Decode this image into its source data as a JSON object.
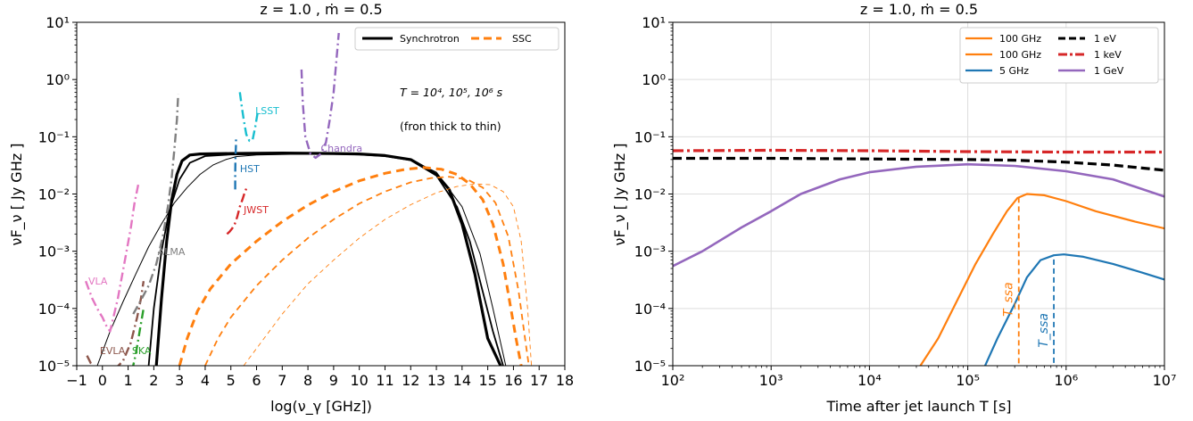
{
  "chart_data": [
    {
      "type": "line",
      "title": "z = 1.0 , ṁ = 0.5",
      "xlabel": "log(ν_γ [GHz])",
      "ylabel": "νF_ν [ Jy GHz ]",
      "xlim": [
        -1,
        18
      ],
      "ylim": [
        1e-05,
        10
      ],
      "yscale": "log",
      "xticks": [
        -1,
        0,
        1,
        2,
        3,
        4,
        5,
        6,
        7,
        8,
        9,
        10,
        11,
        12,
        13,
        14,
        15,
        16,
        17,
        18
      ],
      "yticks": [
        1e-05,
        0.0001,
        0.001,
        0.01,
        0.1,
        1,
        10
      ],
      "grid": false,
      "legend_position": "top-right",
      "legend": [
        {
          "label": "Synchrotron",
          "color": "#000000",
          "style": "solid"
        },
        {
          "label": "SSC",
          "color": "#ff7f0e",
          "style": "dashed"
        }
      ],
      "annotations": {
        "times": "T = 10⁴, 10⁵, 10⁶ s",
        "order": "(fron thick to thin)"
      },
      "series": [
        {
          "kind": "sync",
          "color": "#000000",
          "width": 3.2,
          "dash": "",
          "x": [
            2.1,
            2.3,
            2.5,
            2.7,
            2.9,
            3.1,
            3.4,
            3.8,
            5,
            7,
            9,
            10,
            11,
            12,
            13,
            13.5,
            14,
            14.5,
            15,
            15.5
          ],
          "y": [
            1e-05,
            0.00015,
            0.0015,
            0.008,
            0.022,
            0.038,
            0.048,
            0.05,
            0.051,
            0.052,
            0.051,
            0.05,
            0.047,
            0.04,
            0.022,
            0.012,
            0.003,
            0.0004,
            3e-05,
            1e-05
          ]
        },
        {
          "kind": "sync",
          "color": "#000000",
          "width": 1.8,
          "dash": "",
          "x": [
            1.8,
            2.0,
            2.3,
            2.6,
            3.0,
            3.4,
            4.0,
            5,
            7,
            9,
            10,
            11,
            12,
            13,
            13.8,
            14.3,
            14.8,
            15.2,
            15.6
          ],
          "y": [
            1e-05,
            0.0001,
            0.001,
            0.005,
            0.018,
            0.035,
            0.046,
            0.049,
            0.05,
            0.05,
            0.049,
            0.046,
            0.039,
            0.021,
            0.006,
            0.0015,
            0.0002,
            4e-05,
            1e-05
          ]
        },
        {
          "kind": "sync",
          "color": "#000000",
          "width": 1.0,
          "dash": "",
          "x": [
            -0.2,
            0.3,
            0.8,
            1.3,
            1.8,
            2.3,
            2.8,
            3.3,
            3.8,
            4.3,
            4.8,
            5.2,
            6,
            8,
            10,
            11,
            12,
            13,
            14,
            14.7,
            15.2,
            15.7
          ],
          "y": [
            1e-05,
            4e-05,
            0.00013,
            0.0004,
            0.0012,
            0.003,
            0.007,
            0.013,
            0.022,
            0.032,
            0.04,
            0.045,
            0.048,
            0.05,
            0.049,
            0.046,
            0.04,
            0.024,
            0.006,
            0.0009,
            0.0001,
            1e-05
          ]
        },
        {
          "kind": "ssc",
          "color": "#ff7f0e",
          "width": 3.0,
          "dash": "9,6",
          "x": [
            3.0,
            3.3,
            3.7,
            4.2,
            5,
            6,
            7,
            8,
            9,
            10,
            11,
            11.8,
            12.5,
            13.2,
            13.8,
            14.3,
            14.8,
            15.2,
            15.6,
            15.9,
            16.1,
            16.3
          ],
          "y": [
            1e-05,
            3e-05,
            9e-05,
            0.00022,
            0.0006,
            0.0015,
            0.0033,
            0.0064,
            0.011,
            0.017,
            0.023,
            0.027,
            0.029,
            0.027,
            0.022,
            0.015,
            0.008,
            0.003,
            0.0006,
            0.0001,
            3e-05,
            1e-05
          ]
        },
        {
          "kind": "ssc",
          "color": "#ff7f0e",
          "width": 1.8,
          "dash": "7,5",
          "x": [
            4.0,
            4.5,
            5,
            6,
            7,
            8,
            9,
            10,
            11,
            12,
            12.8,
            13.5,
            14.2,
            14.8,
            15.3,
            15.8,
            16.2,
            16.45,
            16.6
          ],
          "y": [
            1e-05,
            3e-05,
            7e-05,
            0.00025,
            0.0007,
            0.0017,
            0.0036,
            0.0068,
            0.011,
            0.016,
            0.019,
            0.02,
            0.018,
            0.013,
            0.007,
            0.0018,
            0.0002,
            3e-05,
            1e-05
          ]
        },
        {
          "kind": "ssc",
          "color": "#ff7f0e",
          "width": 0.9,
          "dash": "5,4",
          "x": [
            5.5,
            6,
            7,
            8,
            9,
            10,
            11,
            12,
            13,
            13.8,
            14.5,
            15.1,
            15.6,
            16.0,
            16.3,
            16.55,
            16.7
          ],
          "y": [
            1e-05,
            2e-05,
            8e-05,
            0.00027,
            0.0007,
            0.0017,
            0.0036,
            0.0065,
            0.0105,
            0.0135,
            0.015,
            0.0145,
            0.011,
            0.006,
            0.0015,
            0.0001,
            1e-05
          ]
        },
        {
          "kind": "inst",
          "name": "VLA",
          "color": "#e377c2",
          "dash": "10,4,2,4",
          "x": [
            -0.65,
            -0.4,
            -0.15,
            0.0,
            0.15,
            0.3,
            0.6,
            0.9,
            1.1,
            1.25,
            1.4
          ],
          "y": [
            0.0003,
            0.00015,
            9e-05,
            7e-05,
            5e-05,
            4e-05,
            0.00015,
            0.0008,
            0.0025,
            0.007,
            0.015
          ]
        },
        {
          "kind": "inst",
          "name": "EVLA",
          "color": "#8c564b",
          "dash": "10,4,2,4",
          "x": [
            -0.6,
            -0.45,
            -0.25,
            0.0,
            0.4,
            0.8,
            1.1,
            1.35,
            1.5,
            1.6
          ],
          "y": [
            1.5e-05,
            1.1e-05,
            9e-06,
            8e-06,
            8e-06,
            1.2e-05,
            2.5e-05,
            7e-05,
            0.00015,
            0.0003
          ]
        },
        {
          "kind": "inst",
          "name": "SKA",
          "color": "#2ca02c",
          "dash": "10,4,2,4",
          "x": [
            1.15,
            1.3,
            1.45,
            1.6
          ],
          "y": [
            8e-06,
            1.6e-05,
            4e-05,
            0.0001
          ]
        },
        {
          "kind": "inst",
          "name": "ALMA",
          "color": "#7f7f7f",
          "dash": "10,4,2,4",
          "x": [
            1.2,
            1.5,
            1.8,
            2.1,
            2.35,
            2.55,
            2.7,
            2.8,
            2.9,
            2.95
          ],
          "y": [
            8e-05,
            0.00014,
            0.00025,
            0.0006,
            0.0018,
            0.006,
            0.02,
            0.06,
            0.2,
            0.55
          ]
        },
        {
          "kind": "inst",
          "name": "JWST",
          "color": "#d62728",
          "dash": "10,4,2,4",
          "x": [
            4.85,
            4.95,
            5.05,
            5.15,
            5.25,
            5.35,
            5.45,
            5.55,
            5.65
          ],
          "y": [
            0.002,
            0.0022,
            0.0025,
            0.003,
            0.004,
            0.006,
            0.008,
            0.011,
            0.014
          ]
        },
        {
          "kind": "inst",
          "name": "HST",
          "color": "#1f77b4",
          "dash": "10,4,2,4",
          "x": [
            5.17,
            5.17,
            5.18,
            5.2,
            5.2
          ],
          "y": [
            0.012,
            0.022,
            0.045,
            0.075,
            0.1
          ]
        },
        {
          "kind": "inst",
          "name": "LSST",
          "color": "#17becf",
          "dash": "10,4,2,4",
          "x": [
            5.35,
            5.42,
            5.5,
            5.6,
            5.72,
            5.85,
            5.95,
            6.05
          ],
          "y": [
            0.6,
            0.35,
            0.2,
            0.11,
            0.085,
            0.09,
            0.15,
            0.28
          ]
        },
        {
          "kind": "inst",
          "name": "Chandra",
          "color": "#9467bd",
          "dash": "10,4,2,4",
          "x": [
            7.75,
            7.8,
            7.9,
            8.1,
            8.3,
            8.5,
            8.7,
            8.85,
            9.0,
            9.1,
            9.2
          ],
          "y": [
            1.5,
            0.4,
            0.1,
            0.05,
            0.043,
            0.05,
            0.08,
            0.2,
            0.6,
            2.0,
            6.5
          ]
        }
      ],
      "instrument_labels": [
        {
          "text": "VLA",
          "color": "#e377c2",
          "x": -0.55,
          "y": 0.00026
        },
        {
          "text": "EVLA",
          "color": "#8c564b",
          "x": -0.1,
          "y": 1.6e-05
        },
        {
          "text": "SKA",
          "color": "#2ca02c",
          "x": 1.15,
          "y": 1.6e-05
        },
        {
          "text": "ALMA",
          "color": "#7f7f7f",
          "x": 2.15,
          "y": 0.00085
        },
        {
          "text": "JWST",
          "color": "#d62728",
          "x": 5.5,
          "y": 0.0046
        },
        {
          "text": "HST",
          "color": "#1f77b4",
          "x": 5.35,
          "y": 0.024
        },
        {
          "text": "LSST",
          "color": "#17becf",
          "x": 5.95,
          "y": 0.25
        },
        {
          "text": "Chandra",
          "color": "#9467bd",
          "x": 8.5,
          "y": 0.055
        }
      ]
    },
    {
      "type": "line",
      "title": "z = 1.0, ṁ = 0.5",
      "xlabel": "Time after jet launch T [s]",
      "ylabel": "νF_ν [ Jy GHz ]",
      "xscale": "log",
      "yscale": "log",
      "xlim": [
        100,
        10000000
      ],
      "ylim": [
        1e-05,
        10
      ],
      "xticks": [
        100,
        1000,
        10000,
        100000,
        1000000,
        10000000
      ],
      "yticks": [
        1e-05,
        0.0001,
        0.001,
        0.01,
        0.1,
        1,
        10
      ],
      "grid": true,
      "legend_position": "top-right",
      "legend": [
        {
          "label": "100 GHz",
          "color": "#ff7f0e",
          "style": "solid"
        },
        {
          "label": "1 eV",
          "color": "#000000",
          "style": "dashed"
        },
        {
          "label": "100 GHz",
          "color": "#ff7f0e",
          "style": "solid"
        },
        {
          "label": "1 keV",
          "color": "#d62728",
          "style": "dashdot"
        },
        {
          "label": "5 GHz",
          "color": "#1f77b4",
          "style": "solid"
        },
        {
          "label": "1 GeV",
          "color": "#9467bd",
          "style": "solid"
        }
      ],
      "series": [
        {
          "name": "1 eV",
          "color": "#000000",
          "width": 3.2,
          "dash": "10,5",
          "x": [
            100,
            1000,
            10000,
            100000,
            300000,
            1000000,
            3000000,
            10000000
          ],
          "y": [
            0.042,
            0.042,
            0.041,
            0.04,
            0.039,
            0.036,
            0.032,
            0.026
          ]
        },
        {
          "name": "1 keV",
          "color": "#d62728",
          "width": 3.2,
          "dash": "12,4,3,4",
          "x": [
            100,
            1000,
            10000,
            100000,
            1000000,
            10000000
          ],
          "y": [
            0.057,
            0.058,
            0.057,
            0.055,
            0.054,
            0.054
          ]
        },
        {
          "name": "1 GeV",
          "color": "#9467bd",
          "width": 2.6,
          "dash": "",
          "x": [
            100,
            200,
            500,
            1000,
            2000,
            5000,
            10000,
            30000,
            100000,
            300000,
            1000000,
            3000000,
            10000000
          ],
          "y": [
            0.00055,
            0.001,
            0.0026,
            0.005,
            0.01,
            0.018,
            0.024,
            0.03,
            0.033,
            0.031,
            0.025,
            0.018,
            0.009
          ]
        },
        {
          "name": "100 GHz",
          "color": "#ff7f0e",
          "width": 2.2,
          "dash": "",
          "x": [
            33000,
            50000,
            80000,
            120000,
            180000,
            250000,
            320000,
            400000,
            600000,
            1000000,
            2000000,
            5000000,
            10000000
          ],
          "y": [
            1e-05,
            3e-05,
            0.00015,
            0.0006,
            0.002,
            0.005,
            0.0085,
            0.01,
            0.0095,
            0.0075,
            0.005,
            0.0033,
            0.0025
          ]
        },
        {
          "name": "5 GHz",
          "color": "#1f77b4",
          "width": 2.2,
          "dash": "",
          "x": [
            150000,
            200000,
            300000,
            400000,
            550000,
            750000,
            950000,
            1500000,
            3000000,
            6000000,
            10000000
          ],
          "y": [
            1e-05,
            3e-05,
            0.00012,
            0.00035,
            0.0007,
            0.00085,
            0.00088,
            0.0008,
            0.0006,
            0.00042,
            0.00032
          ]
        }
      ],
      "markers": [
        {
          "label": "T_ssa",
          "color": "#ff7f0e",
          "x": 330000,
          "y": 0.0087
        },
        {
          "label": "T_ssa",
          "color": "#1f77b4",
          "x": 750000,
          "y": 0.00072
        }
      ]
    }
  ]
}
